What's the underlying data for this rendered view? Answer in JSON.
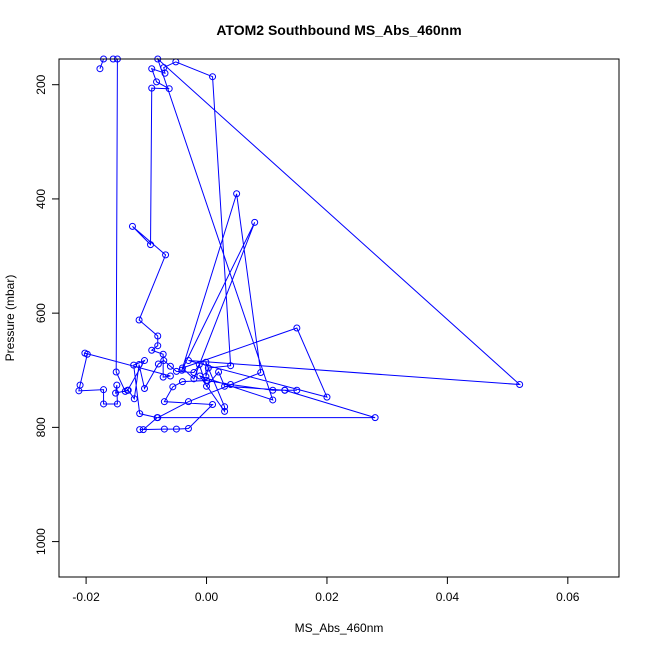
{
  "chart_data": {
    "type": "scatter",
    "title": "ATOM2 Southbound MS_Abs_460nm",
    "xlabel": "MS_Abs_460nm",
    "ylabel": "Pressure (mbar)",
    "xlim": [
      -0.0245,
      0.0685
    ],
    "ylim": [
      1062,
      155
    ],
    "y_reversed": true,
    "x_ticks": [
      -0.02,
      0.0,
      0.02,
      0.04,
      0.06
    ],
    "x_tick_labels": [
      "-0.02",
      "0.00",
      "0.02",
      "0.04",
      "0.06"
    ],
    "y_ticks": [
      200,
      400,
      600,
      800,
      1000
    ],
    "y_tick_labels": [
      "200",
      "400",
      "600",
      "800",
      "1000"
    ],
    "colors": {
      "series": "#0000ff",
      "axes": "#000000"
    },
    "series": [
      {
        "points": [
          [
            -0.0177,
            172
          ],
          [
            -0.0171,
            155
          ],
          [
            -0.0155,
            155
          ],
          [
            -0.0148,
            155
          ],
          [
            -0.015,
            703
          ],
          [
            -0.0135,
            737
          ],
          [
            -0.0131,
            735
          ],
          [
            -0.0103,
            683
          ],
          [
            -0.0121,
            691
          ],
          [
            -0.0111,
            776
          ],
          [
            -0.0082,
            783
          ],
          [
            -0.0105,
            804
          ],
          [
            -0.0111,
            804
          ],
          [
            -0.007,
            803
          ],
          [
            -0.005,
            803
          ],
          [
            -0.003,
            802
          ],
          [
            0.001,
            760
          ],
          [
            -0.007,
            755
          ],
          [
            -0.0056,
            729
          ],
          [
            -0.004,
            720
          ],
          [
            0.0,
            718
          ],
          [
            0.004,
            725
          ],
          [
            0.011,
            735
          ],
          [
            0.015,
            735
          ],
          [
            0.013,
            735
          ],
          [
            0.028,
            783
          ],
          [
            -0.0081,
            783
          ],
          [
            -0.003,
            755
          ],
          [
            0.009,
            704
          ],
          [
            0.005,
            391
          ],
          [
            -0.0041,
            700
          ],
          [
            0.008,
            441
          ],
          [
            -0.0021,
            715
          ],
          [
            -0.004,
            696
          ],
          [
            0.015,
            626
          ],
          [
            0.02,
            747
          ],
          [
            -0.003,
            683
          ],
          [
            0.052,
            725
          ],
          [
            -0.0081,
            155
          ],
          [
            0.011,
            752
          ],
          [
            -0.0011,
            710
          ],
          [
            0.003,
            772
          ],
          [
            0.003,
            764
          ],
          [
            -0.0001,
            686
          ],
          [
            -0.0001,
            711
          ],
          [
            0.0003,
            696
          ],
          [
            0.004,
            692
          ],
          [
            0.001,
            186
          ],
          [
            -0.0051,
            160
          ],
          [
            -0.0071,
            170
          ],
          [
            -0.0069,
            180
          ],
          [
            -0.0091,
            172
          ],
          [
            -0.0083,
            195
          ],
          [
            -0.0062,
            207
          ],
          [
            -0.0091,
            206
          ],
          [
            -0.0093,
            480
          ],
          [
            -0.0123,
            448
          ],
          [
            -0.0068,
            498
          ],
          [
            -0.0112,
            612
          ],
          [
            -0.0081,
            640
          ],
          [
            -0.0081,
            657
          ],
          [
            -0.0091,
            665
          ],
          [
            -0.0072,
            672
          ],
          [
            -0.0072,
            712
          ],
          [
            -0.006,
            710
          ],
          [
            -0.0202,
            670
          ],
          [
            -0.0198,
            672
          ],
          [
            -0.021,
            726
          ],
          [
            -0.0212,
            736
          ],
          [
            -0.0171,
            734
          ],
          [
            -0.0171,
            759
          ],
          [
            -0.0148,
            759
          ],
          [
            -0.0149,
            726
          ],
          [
            -0.0151,
            740
          ],
          [
            -0.013,
            735
          ],
          [
            -0.012,
            750
          ],
          [
            -0.0112,
            690
          ],
          [
            -0.0103,
            732
          ],
          [
            -0.008,
            689
          ],
          [
            -0.0071,
            683
          ],
          [
            -0.006,
            693
          ],
          [
            -0.005,
            702
          ],
          [
            -0.0021,
            704
          ],
          [
            -0.0012,
            690
          ],
          [
            0.0,
            728
          ],
          [
            0.002,
            703
          ],
          [
            0.003,
            728
          ],
          [
            0.013,
            735
          ]
        ]
      }
    ]
  }
}
